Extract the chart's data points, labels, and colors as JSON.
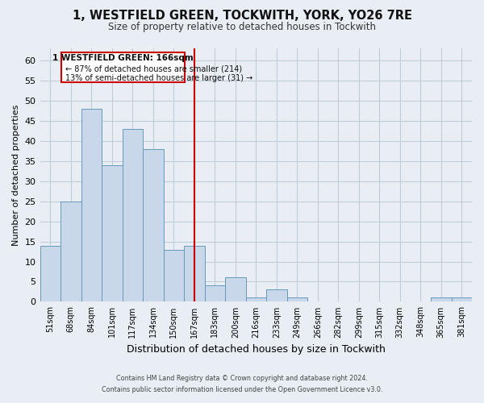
{
  "title": "1, WESTFIELD GREEN, TOCKWITH, YORK, YO26 7RE",
  "subtitle": "Size of property relative to detached houses in Tockwith",
  "xlabel": "Distribution of detached houses by size in Tockwith",
  "ylabel": "Number of detached properties",
  "bin_labels": [
    "51sqm",
    "68sqm",
    "84sqm",
    "101sqm",
    "117sqm",
    "134sqm",
    "150sqm",
    "167sqm",
    "183sqm",
    "200sqm",
    "216sqm",
    "233sqm",
    "249sqm",
    "266sqm",
    "282sqm",
    "299sqm",
    "315sqm",
    "332sqm",
    "348sqm",
    "365sqm",
    "381sqm"
  ],
  "bar_values": [
    14,
    25,
    48,
    34,
    43,
    38,
    13,
    14,
    4,
    6,
    1,
    3,
    1,
    0,
    0,
    0,
    0,
    0,
    0,
    1,
    1
  ],
  "bar_color": "#c8d8ea",
  "bar_edge_color": "#6699bb",
  "vline_x": 7,
  "vline_color": "#cc0000",
  "ylim": [
    0,
    63
  ],
  "yticks": [
    0,
    5,
    10,
    15,
    20,
    25,
    30,
    35,
    40,
    45,
    50,
    55,
    60
  ],
  "annotation_title": "1 WESTFIELD GREEN: 166sqm",
  "annotation_line1": "← 87% of detached houses are smaller (214)",
  "annotation_line2": "13% of semi-detached houses are larger (31) →",
  "annotation_box_color": "#ffffff",
  "annotation_box_edge": "#cc0000",
  "footer_line1": "Contains HM Land Registry data © Crown copyright and database right 2024.",
  "footer_line2": "Contains public sector information licensed under the Open Government Licence v3.0.",
  "background_color": "#e8eef4",
  "grid_color": "#c0ccd8",
  "plot_bg_color": "#e8eef4"
}
